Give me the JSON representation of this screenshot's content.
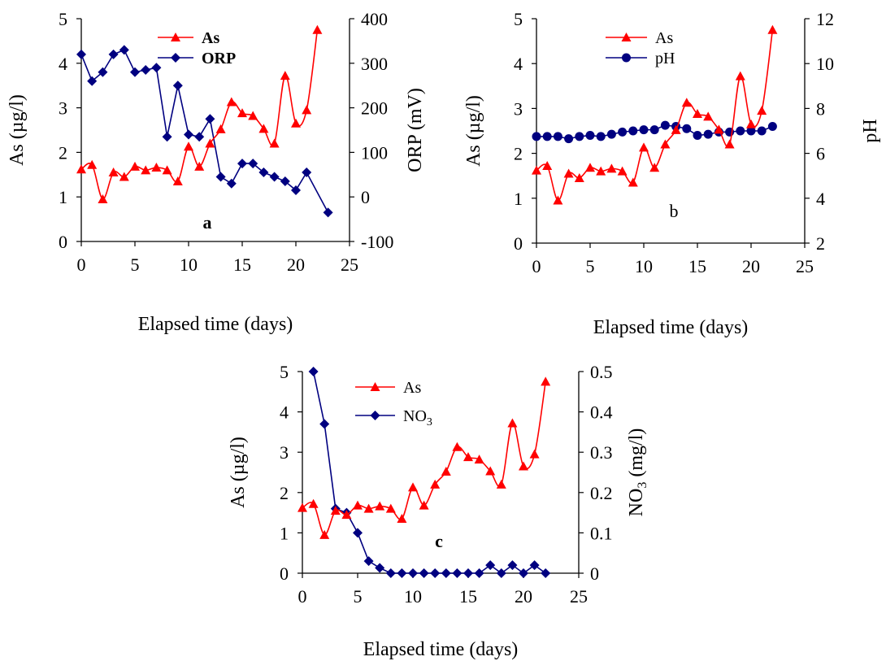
{
  "chart_data": [
    {
      "type": "line",
      "panel_label": "a",
      "xlabel": "Elapsed time (days)",
      "ylabel_left": "As (µg/l)",
      "ylabel_right": "ORP (mV)",
      "xlim": [
        0,
        25
      ],
      "x_ticks": [
        0,
        5,
        10,
        15,
        20,
        25
      ],
      "ylim_left": [
        0,
        5
      ],
      "y_ticks_left": [
        0,
        1,
        2,
        3,
        4,
        5
      ],
      "ylim_right": [
        -100,
        400
      ],
      "y_ticks_right": [
        -100,
        0,
        100,
        200,
        300,
        400
      ],
      "legend_position": "top-center",
      "grid": false,
      "series": [
        {
          "name": "As",
          "axis": "left",
          "color": "#ff0000",
          "marker": "triangle",
          "x": [
            0,
            1,
            2,
            3,
            4,
            5,
            6,
            7,
            8,
            9,
            10,
            11,
            12,
            13,
            14,
            15,
            16,
            17,
            18,
            19,
            20,
            21,
            22
          ],
          "y": [
            1.62,
            1.72,
            0.95,
            1.55,
            1.45,
            1.68,
            1.6,
            1.66,
            1.6,
            1.35,
            2.13,
            1.68,
            2.2,
            2.52,
            3.13,
            2.88,
            2.82,
            2.53,
            2.2,
            3.72,
            2.65,
            2.95,
            4.75
          ]
        },
        {
          "name": "ORP",
          "axis": "right",
          "color": "#000080",
          "marker": "diamond",
          "x": [
            0,
            1,
            2,
            3,
            4,
            5,
            6,
            7,
            8,
            9,
            10,
            11,
            12,
            13,
            14,
            15,
            16,
            17,
            18,
            19,
            20,
            21,
            23
          ],
          "y": [
            320,
            260,
            280,
            320,
            330,
            280,
            285,
            290,
            135,
            250,
            140,
            135,
            175,
            45,
            30,
            75,
            75,
            55,
            45,
            35,
            15,
            55,
            -35
          ]
        }
      ]
    },
    {
      "type": "line",
      "panel_label": "b",
      "xlabel": "Elapsed time (days)",
      "ylabel_left": "As (µg/l)",
      "ylabel_right": "pH",
      "xlim": [
        0,
        25
      ],
      "x_ticks": [
        0,
        5,
        10,
        15,
        20,
        25
      ],
      "ylim_left": [
        0,
        5
      ],
      "y_ticks_left": [
        0,
        1,
        2,
        3,
        4,
        5
      ],
      "ylim_right": [
        2,
        12
      ],
      "y_ticks_right": [
        2,
        4,
        6,
        8,
        10,
        12
      ],
      "legend_position": "top-center",
      "grid": false,
      "series": [
        {
          "name": "As",
          "axis": "left",
          "color": "#ff0000",
          "marker": "triangle",
          "x": [
            0,
            1,
            2,
            3,
            4,
            5,
            6,
            7,
            8,
            9,
            10,
            11,
            12,
            13,
            14,
            15,
            16,
            17,
            18,
            19,
            20,
            21,
            22
          ],
          "y": [
            1.62,
            1.72,
            0.95,
            1.55,
            1.45,
            1.68,
            1.6,
            1.66,
            1.6,
            1.35,
            2.13,
            1.68,
            2.2,
            2.52,
            3.13,
            2.88,
            2.82,
            2.53,
            2.2,
            3.72,
            2.65,
            2.95,
            4.75
          ]
        },
        {
          "name": "pH",
          "axis": "right",
          "color": "#000080",
          "marker": "circle",
          "x": [
            0,
            1,
            2,
            3,
            4,
            5,
            6,
            7,
            8,
            9,
            10,
            11,
            12,
            13,
            14,
            15,
            16,
            17,
            18,
            19,
            20,
            21,
            22
          ],
          "y": [
            6.75,
            6.75,
            6.75,
            6.65,
            6.75,
            6.8,
            6.75,
            6.85,
            6.95,
            7.0,
            7.05,
            7.05,
            7.25,
            7.2,
            7.1,
            6.8,
            6.85,
            6.95,
            6.95,
            7.0,
            7.0,
            7.0,
            7.2
          ]
        }
      ]
    },
    {
      "type": "line",
      "panel_label": "c",
      "xlabel": "Elapsed time (days)",
      "ylabel_left": "As (µg/l)",
      "ylabel_right_main": "NO",
      "ylabel_right_sub": "3",
      "ylabel_right_tail": " (mg/l)",
      "xlim": [
        0,
        25
      ],
      "x_ticks": [
        0,
        5,
        10,
        15,
        20,
        25
      ],
      "ylim_left": [
        0,
        5
      ],
      "y_ticks_left": [
        0,
        1,
        2,
        3,
        4,
        5
      ],
      "ylim_right": [
        0,
        0.5
      ],
      "y_ticks_right": [
        "0",
        "0.1",
        "0.2",
        "0.3",
        "0.4",
        "0.5"
      ],
      "legend_position": "top-center",
      "grid": false,
      "series": [
        {
          "name": "As",
          "axis": "left",
          "color": "#ff0000",
          "marker": "triangle",
          "x": [
            0,
            1,
            2,
            3,
            4,
            5,
            6,
            7,
            8,
            9,
            10,
            11,
            12,
            13,
            14,
            15,
            16,
            17,
            18,
            19,
            20,
            21,
            22
          ],
          "y": [
            1.62,
            1.72,
            0.95,
            1.55,
            1.45,
            1.68,
            1.6,
            1.66,
            1.6,
            1.35,
            2.13,
            1.68,
            2.2,
            2.52,
            3.13,
            2.88,
            2.82,
            2.53,
            2.2,
            3.72,
            2.65,
            2.95,
            4.75
          ]
        },
        {
          "name": "NO3",
          "name_main": "NO",
          "name_sub": "3",
          "axis": "right",
          "color": "#000080",
          "marker": "diamond",
          "x": [
            1,
            2,
            3,
            4,
            5,
            6,
            7,
            8,
            9,
            10,
            11,
            12,
            13,
            14,
            15,
            16,
            17,
            18,
            19,
            20,
            21,
            22
          ],
          "y": [
            0.5,
            0.37,
            0.16,
            0.15,
            0.1,
            0.03,
            0.013,
            0.0,
            0.0,
            0.0,
            0.0,
            0.0,
            0.0,
            0.0,
            0.0,
            0.0,
            0.02,
            0.0,
            0.02,
            0.0,
            0.02,
            0.0
          ]
        }
      ]
    }
  ]
}
